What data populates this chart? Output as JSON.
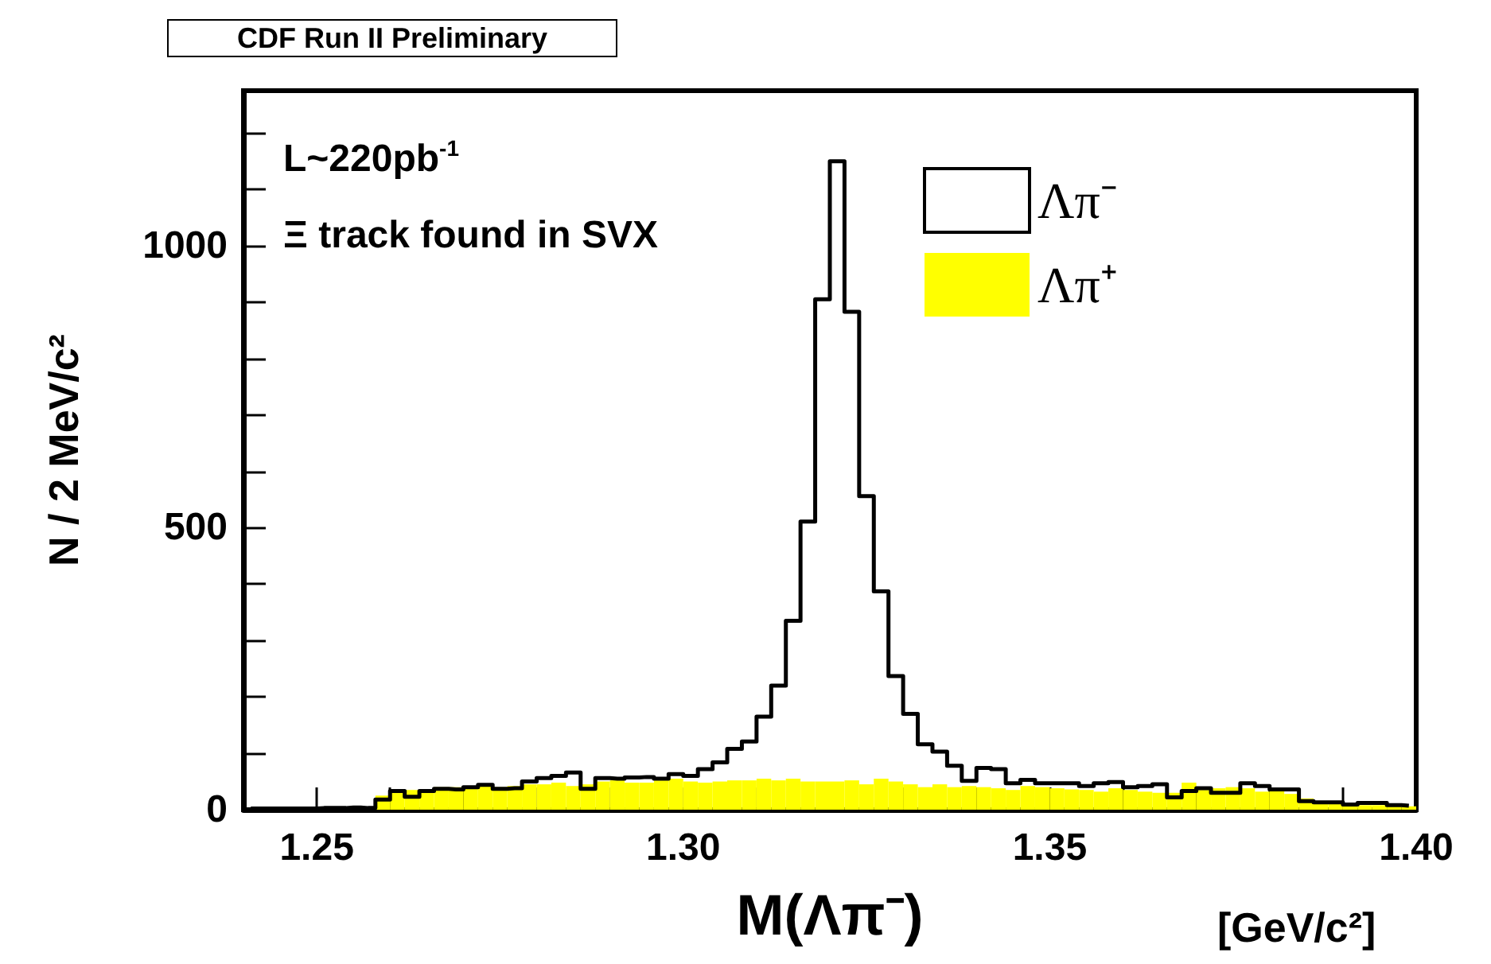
{
  "chart_data": {
    "type": "histogram",
    "title": "CDF Run II Preliminary",
    "xlabel": "M(Λπ⁻)",
    "ylabel": "N / 2 MeV/c²",
    "annotations": [
      "L~220pb$^{-1}$",
      "Ξ track found in SVX",
      "[GeV/c²]"
    ],
    "bins": [
      1.24,
      1.242,
      1.244,
      1.246,
      1.248,
      1.25,
      1.252,
      1.254,
      1.256,
      1.258,
      1.26,
      1.262,
      1.264,
      1.266,
      1.268,
      1.27,
      1.272,
      1.274,
      1.276,
      1.278,
      1.28,
      1.282,
      1.284,
      1.286,
      1.288,
      1.29,
      1.292,
      1.294,
      1.296,
      1.298,
      1.3,
      1.302,
      1.304,
      1.306,
      1.308,
      1.31,
      1.312,
      1.314,
      1.316,
      1.318,
      1.32,
      1.322,
      1.324,
      1.326,
      1.328,
      1.33,
      1.332,
      1.334,
      1.336,
      1.338,
      1.34,
      1.342,
      1.344,
      1.346,
      1.348,
      1.35,
      1.352,
      1.354,
      1.356,
      1.358,
      1.36,
      1.362,
      1.364,
      1.366,
      1.368,
      1.37,
      1.372,
      1.374,
      1.376,
      1.378,
      1.38,
      1.382,
      1.384,
      1.386,
      1.388,
      1.39,
      1.392,
      1.394,
      1.396,
      1.398,
      1.4
    ],
    "series": [
      {
        "name": "Λπ⁻",
        "type": "step",
        "color": "#000000",
        "x": [
          1.241,
          1.243,
          1.245,
          1.247,
          1.249,
          1.251,
          1.253,
          1.255,
          1.257,
          1.259,
          1.261,
          1.263,
          1.265,
          1.267,
          1.269,
          1.271,
          1.273,
          1.275,
          1.277,
          1.279,
          1.281,
          1.283,
          1.285,
          1.287,
          1.289,
          1.291,
          1.293,
          1.295,
          1.297,
          1.299,
          1.301,
          1.303,
          1.305,
          1.307,
          1.309,
          1.311,
          1.313,
          1.315,
          1.317,
          1.319,
          1.321,
          1.323,
          1.325,
          1.327,
          1.329,
          1.331,
          1.333,
          1.335,
          1.337,
          1.339,
          1.341,
          1.343,
          1.345,
          1.347,
          1.349,
          1.351,
          1.353,
          1.355,
          1.357,
          1.359,
          1.361,
          1.363,
          1.365,
          1.367,
          1.369,
          1.371,
          1.373,
          1.375,
          1.377,
          1.379,
          1.381,
          1.383,
          1.385,
          1.387,
          1.389,
          1.391,
          1.393,
          1.395,
          1.397,
          1.399
        ],
        "values": [
          2,
          2,
          2,
          2,
          2,
          3,
          3,
          4,
          3,
          18,
          33,
          23,
          33,
          37,
          36,
          40,
          44,
          37,
          38,
          50,
          56,
          60,
          66,
          37,
          56,
          55,
          57,
          58,
          55,
          63,
          60,
          72,
          84,
          108,
          121,
          165,
          220,
          335,
          511,
          905,
          1150,
          883,
          556,
          387,
          237,
          170,
          116,
          103,
          78,
          51,
          74,
          72,
          47,
          53,
          47,
          47,
          47,
          42,
          47,
          49,
          40,
          42,
          45,
          22,
          33,
          38,
          30,
          30,
          47,
          42,
          36,
          36,
          15,
          13,
          13,
          9,
          12,
          12,
          8,
          7
        ]
      },
      {
        "name": "Λπ⁺",
        "color": "#ffff00",
        "values": [
          null,
          2,
          2,
          2,
          2,
          2,
          3,
          null,
          null,
          25,
          30,
          35,
          35,
          40,
          40,
          42,
          45,
          40,
          42,
          45,
          45,
          48,
          42,
          45,
          50,
          52,
          48,
          48,
          52,
          55,
          50,
          48,
          50,
          52,
          52,
          55,
          52,
          55,
          50,
          50,
          50,
          52,
          45,
          55,
          50,
          45,
          40,
          45,
          40,
          42,
          40,
          38,
          35,
          42,
          40,
          38,
          36,
          35,
          32,
          38,
          35,
          32,
          30,
          30,
          48,
          35,
          38,
          40,
          38,
          32,
          36,
          28,
          20,
          15,
          12,
          10,
          8,
          8,
          6,
          6
        ]
      }
    ],
    "xlim": [
      1.24,
      1.4
    ],
    "xticks": [
      {
        "value": 1.25,
        "label": "1.25"
      },
      {
        "value": 1.26,
        "label": null
      },
      {
        "value": 1.27,
        "label": null
      },
      {
        "value": 1.28,
        "label": null
      },
      {
        "value": 1.29,
        "label": null
      },
      {
        "value": 1.3,
        "label": "1.30"
      },
      {
        "value": 1.31,
        "label": null
      },
      {
        "value": 1.32,
        "label": null
      },
      {
        "value": 1.33,
        "label": null
      },
      {
        "value": 1.34,
        "label": null
      },
      {
        "value": 1.35,
        "label": "1.35"
      },
      {
        "value": 1.36,
        "label": null
      },
      {
        "value": 1.37,
        "label": null
      },
      {
        "value": 1.38,
        "label": null
      },
      {
        "value": 1.39,
        "label": null
      },
      {
        "value": 1.4,
        "label": "1.40"
      }
    ],
    "ylim": [
      0,
      1275
    ],
    "yticks": [
      0,
      {
        "value": 100,
        "label": null
      },
      {
        "value": 200,
        "label": null
      },
      {
        "value": 300,
        "label": null
      },
      {
        "value": 400,
        "label": null
      },
      500,
      {
        "value": 600,
        "label": null
      },
      {
        "value": 700,
        "label": null
      },
      {
        "value": 800,
        "label": null
      },
      {
        "value": 900,
        "label": null
      },
      1000,
      {
        "value": 1100,
        "label": null
      },
      {
        "value": 1200,
        "label": null
      }
    ],
    "legend": "top right",
    "grid": false
  }
}
